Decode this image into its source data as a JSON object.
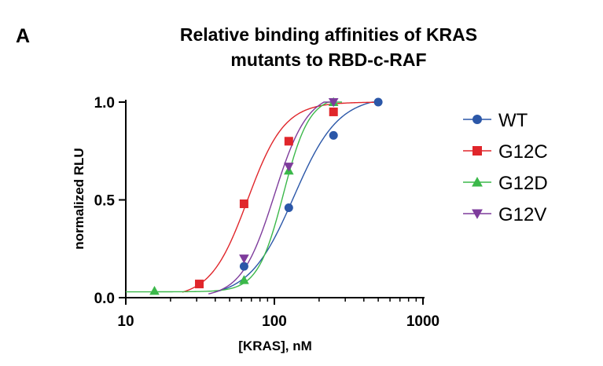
{
  "chart_data": {
    "type": "scatter",
    "panel_label": "A",
    "title_lines": [
      "Relative binding affinities of KRAS",
      "mutants to RBD-c-RAF"
    ],
    "xlabel": "[KRAS], nM",
    "ylabel": "normalized RLU",
    "xscale": "log",
    "xlim": [
      10,
      1000
    ],
    "ylim": [
      0,
      1
    ],
    "xticks": [
      10,
      100,
      1000
    ],
    "xtick_labels": [
      "10",
      "100",
      "1000"
    ],
    "yticks": [
      0,
      0.5,
      1
    ],
    "ytick_labels": [
      "0.0",
      "0.5",
      "1.0"
    ],
    "grid": false,
    "legend_position": "right",
    "series": [
      {
        "name": "WT",
        "marker": "circle",
        "color": "#2b57a8",
        "x": [
          62.5,
          125,
          250,
          500
        ],
        "y": [
          0.16,
          0.46,
          0.83,
          1.0
        ],
        "fit": {
          "bottom": 0.0,
          "top": 1.03,
          "ec50": 135,
          "hill": 2.9,
          "xmin": 40,
          "xmax": 500
        }
      },
      {
        "name": "G12C",
        "marker": "square",
        "color": "#e0262b",
        "x": [
          31.25,
          62.5,
          125,
          250
        ],
        "y": [
          0.07,
          0.48,
          0.8,
          0.95
        ],
        "fit": {
          "bottom": 0.0,
          "top": 1.0,
          "ec50": 66,
          "hill": 3.5,
          "xmin": 24,
          "xmax": 500
        }
      },
      {
        "name": "G12D",
        "marker": "triangle-up",
        "color": "#3bb84a",
        "x": [
          15.6,
          62.5,
          125,
          250
        ],
        "y": [
          0.035,
          0.09,
          0.65,
          1.0
        ],
        "fit": {
          "bottom": 0.03,
          "top": 1.03,
          "ec50": 115,
          "hill": 5.0,
          "xmin": 10,
          "xmax": 285
        }
      },
      {
        "name": "G12V",
        "marker": "triangle-down",
        "color": "#7e3c9c",
        "x": [
          62.5,
          125,
          250
        ],
        "y": [
          0.2,
          0.67,
          1.0
        ],
        "fit": {
          "bottom": 0.0,
          "top": 1.05,
          "ec50": 100,
          "hill": 3.9,
          "xmin": 36,
          "xmax": 255
        }
      }
    ]
  }
}
